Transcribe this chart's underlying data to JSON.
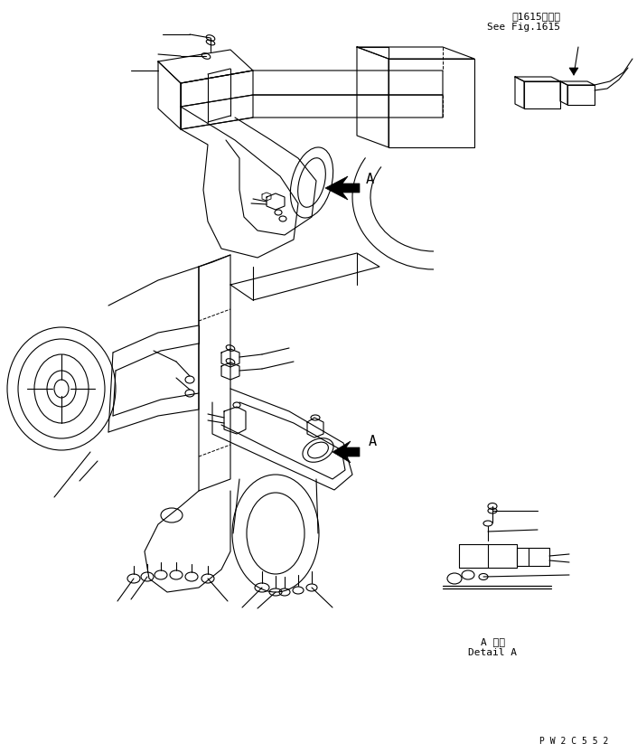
{
  "bg_color": "#ffffff",
  "line_color": "#000000",
  "fig_width": 7.05,
  "fig_height": 8.33,
  "dpi": 100,
  "top_right_text1": "第1615図参照",
  "top_right_text2": "See Fig.1615",
  "bottom_right_text1": "A 詳細",
  "bottom_right_text2": "Detail A",
  "watermark": "P W 2 C 5 5 2"
}
